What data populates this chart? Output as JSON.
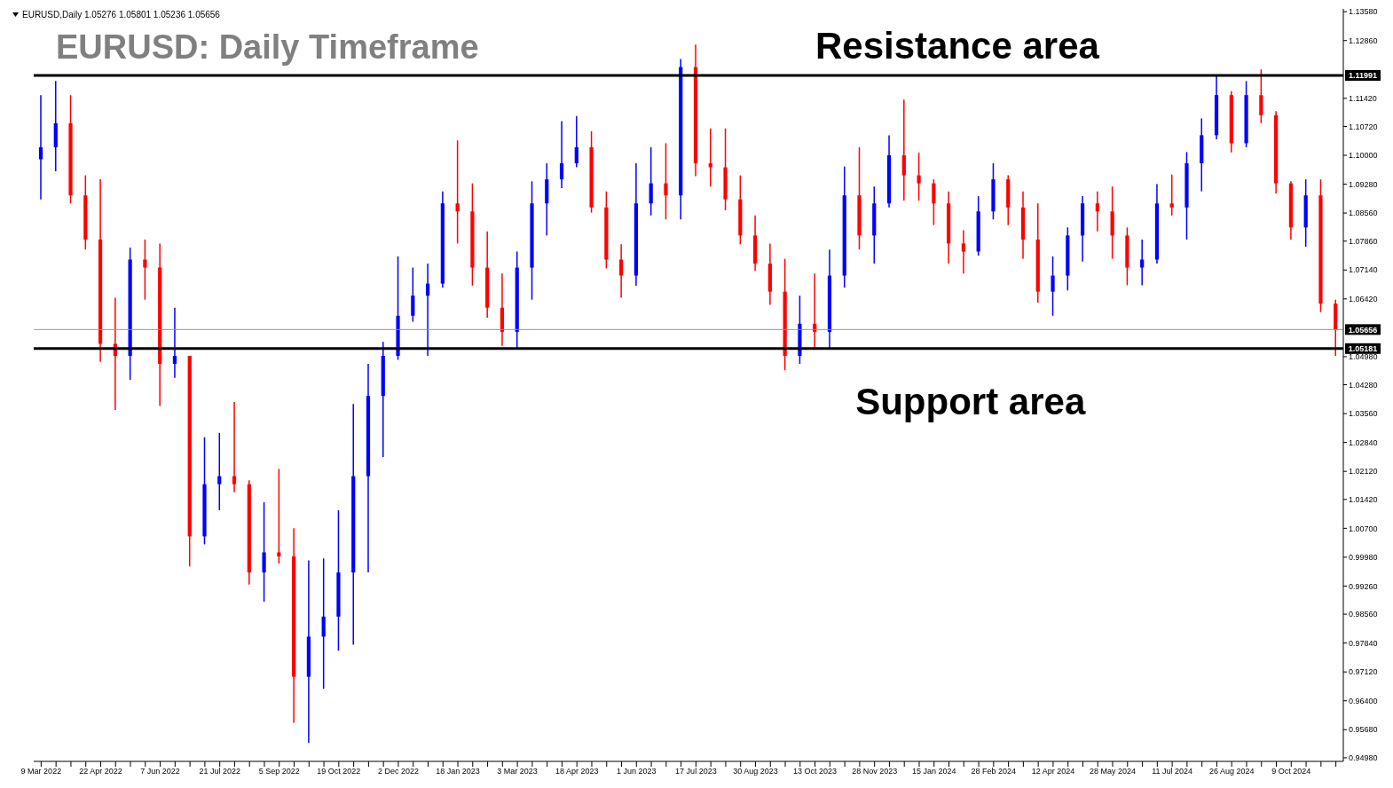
{
  "chart_data": {
    "type": "candlestick",
    "title": "EURUSD: Daily Timeframe",
    "subtitle": "EURUSD,Daily  1.05276 1.05801 1.05236 1.05656",
    "annotations": [
      "Resistance area",
      "Support area"
    ],
    "categories": [
      "9 Mar 2022",
      null,
      null,
      null,
      "22 Apr 2022",
      null,
      null,
      null,
      "7 Jun 2022",
      null,
      null,
      null,
      "21 Jul 2022",
      null,
      null,
      null,
      "5 Sep 2022",
      null,
      null,
      null,
      "19 Oct 2022",
      null,
      null,
      null,
      "2 Dec 2022",
      null,
      null,
      null,
      "18 Jan 2023",
      null,
      null,
      null,
      "3 Mar 2023",
      null,
      null,
      null,
      "18 Apr 2023",
      null,
      null,
      null,
      "1 Jun 2023",
      null,
      null,
      null,
      "17 Jul 2023",
      null,
      null,
      null,
      "30 Aug 2023",
      null,
      null,
      null,
      "13 Oct 2023",
      null,
      null,
      null,
      "28 Nov 2023",
      null,
      null,
      null,
      "15 Jan 2024",
      null,
      null,
      null,
      "28 Feb 2024",
      null,
      null,
      null,
      "12 Apr 2024",
      null,
      null,
      null,
      "28 May 2024",
      null,
      null,
      null,
      "11 Jul 2024",
      null,
      null,
      null,
      "26 Aug 2024",
      null,
      null,
      null,
      "9 Oct 2024",
      null,
      null,
      null
    ],
    "ohlc": [
      [
        1.099,
        1.115,
        1.089,
        1.102
      ],
      [
        1.102,
        1.1185,
        1.096,
        1.108
      ],
      [
        1.108,
        1.115,
        1.088,
        1.09
      ],
      [
        1.09,
        1.095,
        1.0765,
        1.079
      ],
      [
        1.079,
        1.094,
        1.0485,
        1.053
      ],
      [
        1.053,
        1.0645,
        1.0365,
        1.05
      ],
      [
        1.05,
        1.077,
        1.044,
        1.074
      ],
      [
        1.074,
        1.079,
        1.064,
        1.072
      ],
      [
        1.072,
        1.078,
        1.0375,
        1.048
      ],
      [
        1.048,
        1.062,
        1.0445,
        1.05
      ],
      [
        1.05,
        1.05,
        0.9975,
        1.005
      ],
      [
        1.005,
        1.0297,
        1.003,
        1.018
      ],
      [
        1.018,
        1.0308,
        1.0115,
        1.02
      ],
      [
        1.02,
        1.0385,
        1.016,
        1.018
      ],
      [
        1.018,
        1.019,
        0.993,
        0.996
      ],
      [
        0.996,
        1.0135,
        0.9887,
        1.001
      ],
      [
        1.001,
        1.0218,
        0.9982,
        1.0
      ],
      [
        1.0,
        1.007,
        0.9585,
        0.97
      ],
      [
        0.97,
        0.999,
        0.9535,
        0.98
      ],
      [
        0.98,
        0.9995,
        0.967,
        0.985
      ],
      [
        0.985,
        1.0115,
        0.9765,
        0.996
      ],
      [
        0.996,
        1.038,
        0.978,
        1.02
      ],
      [
        1.02,
        1.048,
        0.996,
        1.04
      ],
      [
        1.04,
        1.0535,
        1.0248,
        1.05
      ],
      [
        1.05,
        1.0748,
        1.049,
        1.06
      ],
      [
        1.06,
        1.072,
        1.0585,
        1.065
      ],
      [
        1.065,
        1.073,
        1.05,
        1.068
      ],
      [
        1.068,
        1.091,
        1.067,
        1.088
      ],
      [
        1.088,
        1.1037,
        1.078,
        1.086
      ],
      [
        1.086,
        1.093,
        1.0675,
        1.072
      ],
      [
        1.072,
        1.081,
        1.0595,
        1.062
      ],
      [
        1.062,
        1.0705,
        1.0525,
        1.056
      ],
      [
        1.056,
        1.076,
        1.052,
        1.072
      ],
      [
        1.072,
        1.0935,
        1.064,
        1.088
      ],
      [
        1.088,
        1.098,
        1.08,
        1.094
      ],
      [
        1.094,
        1.1085,
        1.0918,
        1.098
      ],
      [
        1.098,
        1.1098,
        1.097,
        1.102
      ],
      [
        1.102,
        1.106,
        1.0857,
        1.087
      ],
      [
        1.087,
        1.091,
        1.0718,
        1.074
      ],
      [
        1.074,
        1.0778,
        1.0645,
        1.07
      ],
      [
        1.07,
        1.098,
        1.0675,
        1.088
      ],
      [
        1.088,
        1.102,
        1.085,
        1.093
      ],
      [
        1.093,
        1.103,
        1.084,
        1.09
      ],
      [
        1.09,
        1.124,
        1.084,
        1.122
      ],
      [
        1.122,
        1.1276,
        1.0948,
        1.098
      ],
      [
        1.098,
        1.1067,
        1.0922,
        1.097
      ],
      [
        1.097,
        1.1067,
        1.0863,
        1.089
      ],
      [
        1.089,
        1.095,
        1.0778,
        1.08
      ],
      [
        1.08,
        1.085,
        1.0712,
        1.073
      ],
      [
        1.073,
        1.078,
        1.0627,
        1.066
      ],
      [
        1.066,
        1.0742,
        1.0464,
        1.05
      ],
      [
        1.05,
        1.065,
        1.048,
        1.058
      ],
      [
        1.058,
        1.0705,
        1.052,
        1.056
      ],
      [
        1.056,
        1.0765,
        1.052,
        1.07
      ],
      [
        1.07,
        1.0972,
        1.067,
        1.09
      ],
      [
        1.09,
        1.102,
        1.0765,
        1.08
      ],
      [
        1.08,
        1.0922,
        1.073,
        1.088
      ],
      [
        1.088,
        1.105,
        1.087,
        1.1
      ],
      [
        1.1,
        1.1139,
        1.0887,
        1.095
      ],
      [
        1.095,
        1.1007,
        1.0887,
        1.093
      ],
      [
        1.093,
        1.094,
        1.0826,
        1.088
      ],
      [
        1.088,
        1.091,
        1.073,
        1.078
      ],
      [
        1.078,
        1.0813,
        1.0705,
        1.076
      ],
      [
        1.076,
        1.0898,
        1.075,
        1.086
      ],
      [
        1.086,
        1.098,
        1.084,
        1.094
      ],
      [
        1.094,
        1.095,
        1.0826,
        1.087
      ],
      [
        1.087,
        1.091,
        1.0742,
        1.079
      ],
      [
        1.079,
        1.088,
        1.0633,
        1.066
      ],
      [
        1.066,
        1.0748,
        1.06,
        1.07
      ],
      [
        1.07,
        1.082,
        1.0663,
        1.08
      ],
      [
        1.08,
        1.0898,
        1.0735,
        1.088
      ],
      [
        1.088,
        1.091,
        1.081,
        1.086
      ],
      [
        1.086,
        1.0922,
        1.0742,
        1.08
      ],
      [
        1.08,
        1.082,
        1.0676,
        1.072
      ],
      [
        1.072,
        1.079,
        1.0676,
        1.074
      ],
      [
        1.074,
        1.0928,
        1.073,
        1.088
      ],
      [
        1.088,
        1.0952,
        1.085,
        1.087
      ],
      [
        1.087,
        1.1008,
        1.079,
        1.098
      ],
      [
        1.098,
        1.1092,
        1.091,
        1.105
      ],
      [
        1.105,
        1.12,
        1.104,
        1.115
      ],
      [
        1.115,
        1.116,
        1.1007,
        1.103
      ],
      [
        1.103,
        1.1185,
        1.102,
        1.115
      ],
      [
        1.115,
        1.1214,
        1.108,
        1.11
      ],
      [
        1.11,
        1.111,
        1.0905,
        1.093
      ],
      [
        1.093,
        1.0935,
        1.079,
        1.082
      ],
      [
        1.082,
        1.094,
        1.0772,
        1.09
      ],
      [
        1.09,
        1.094,
        1.0609,
        1.063
      ],
      [
        1.063,
        1.064,
        1.05,
        1.0566
      ]
    ],
    "colors": [
      "#0000ff",
      "#0000ff",
      "#ff0000",
      "#ff0000",
      "#ff0000",
      "#ff0000",
      "#0000ff",
      "#ff0000",
      "#ff0000",
      "#0000ff",
      "#ff0000",
      "#0000ff",
      "#0000ff",
      "#ff0000",
      "#ff0000",
      "#0000ff",
      "#ff0000",
      "#ff0000",
      "#0000ff",
      "#0000ff",
      "#0000ff",
      "#0000ff",
      "#0000ff",
      "#0000ff",
      "#0000ff",
      "#0000ff",
      "#0000ff",
      "#0000ff",
      "#ff0000",
      "#ff0000",
      "#ff0000",
      "#ff0000",
      "#0000ff",
      "#0000ff",
      "#0000ff",
      "#0000ff",
      "#0000ff",
      "#ff0000",
      "#ff0000",
      "#ff0000",
      "#0000ff",
      "#0000ff",
      "#ff0000",
      "#0000ff",
      "#ff0000",
      "#ff0000",
      "#ff0000",
      "#ff0000",
      "#ff0000",
      "#ff0000",
      "#ff0000",
      "#0000ff",
      "#ff0000",
      "#0000ff",
      "#0000ff",
      "#ff0000",
      "#0000ff",
      "#0000ff",
      "#ff0000",
      "#ff0000",
      "#ff0000",
      "#ff0000",
      "#ff0000",
      "#0000ff",
      "#0000ff",
      "#ff0000",
      "#ff0000",
      "#ff0000",
      "#0000ff",
      "#0000ff",
      "#0000ff",
      "#ff0000",
      "#ff0000",
      "#ff0000",
      "#0000ff",
      "#0000ff",
      "#ff0000",
      "#0000ff",
      "#0000ff",
      "#0000ff",
      "#ff0000",
      "#0000ff",
      "#ff0000",
      "#ff0000",
      "#ff0000",
      "#0000ff",
      "#ff0000",
      "#ff0000"
    ],
    "ylim": [
      0.9489,
      1.1365
    ],
    "yticks": [
      {
        "value": 0.9498,
        "label": "0.94980"
      },
      {
        "value": 0.9568,
        "label": "0.95680"
      },
      {
        "value": 0.964,
        "label": "0.96400"
      },
      {
        "value": 0.9712,
        "label": "0.97120"
      },
      {
        "value": 0.9784,
        "label": "0.97840"
      },
      {
        "value": 0.9856,
        "label": "0.98560"
      },
      {
        "value": 0.9926,
        "label": "0.99260"
      },
      {
        "value": 0.9998,
        "label": "0.99980"
      },
      {
        "value": 1.007,
        "label": "1.00700"
      },
      {
        "value": 1.0142,
        "label": "1.01420"
      },
      {
        "value": 1.0212,
        "label": "1.02120"
      },
      {
        "value": 1.0284,
        "label": "1.02840"
      },
      {
        "value": 1.0356,
        "label": "1.03560"
      },
      {
        "value": 1.0428,
        "label": "1.04280"
      },
      {
        "value": 1.0498,
        "label": "1.04980"
      },
      {
        "value": 1.0642,
        "label": "1.06420"
      },
      {
        "value": 1.0714,
        "label": "1.07140"
      },
      {
        "value": 1.0786,
        "label": "1.07860"
      },
      {
        "value": 1.0856,
        "label": "1.08560"
      },
      {
        "value": 1.0928,
        "label": "1.09280"
      },
      {
        "value": 1.1,
        "label": "1.10000"
      },
      {
        "value": 1.1072,
        "label": "1.10720"
      },
      {
        "value": 1.1142,
        "label": "1.11420"
      },
      {
        "value": 1.1286,
        "label": "1.12860"
      },
      {
        "value": 1.1358,
        "label": "1.13580"
      }
    ],
    "ref_lines": [
      {
        "axis": "y",
        "value": 1.11991,
        "label": "1.11991",
        "color": "#000000"
      },
      {
        "axis": "y",
        "value": 1.05181,
        "label": "1.05181",
        "color": "#000000"
      },
      {
        "axis": "y",
        "value": 1.05656,
        "label": "1.05656",
        "color": "#8899aa"
      }
    ],
    "grid": false,
    "legend": false
  }
}
